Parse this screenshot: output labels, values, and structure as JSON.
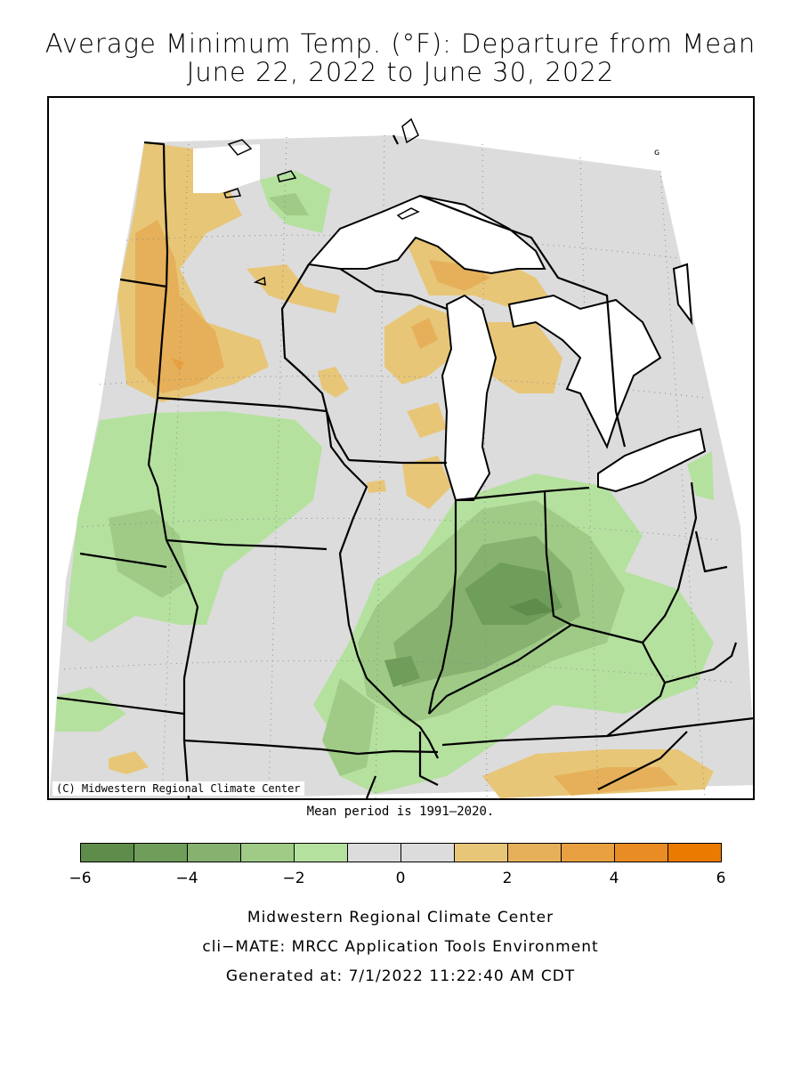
{
  "title_line1": "Average Minimum Temp. (°F): Departure from Mean",
  "title_line2": "June 22, 2022 to June 30, 2022",
  "copyright": "(C) Midwestern Regional Climate Center",
  "mean_note": "Mean period is 1991–2020.",
  "legend": {
    "bins": [
      {
        "from": -6,
        "to": -5,
        "color": "#5e8c4a"
      },
      {
        "from": -5,
        "to": -4,
        "color": "#6f9d5a"
      },
      {
        "from": -4,
        "to": -3,
        "color": "#86b16e"
      },
      {
        "from": -3,
        "to": -2,
        "color": "#9fcb87"
      },
      {
        "from": -2,
        "to": -1,
        "color": "#b5e19f"
      },
      {
        "from": -1,
        "to": 0,
        "color": "#dcdcdc"
      },
      {
        "from": 0,
        "to": 1,
        "color": "#dcdcdc"
      },
      {
        "from": 1,
        "to": 2,
        "color": "#e8c678"
      },
      {
        "from": 2,
        "to": 3,
        "color": "#e6b05a"
      },
      {
        "from": 3,
        "to": 4,
        "color": "#e8a040"
      },
      {
        "from": 4,
        "to": 5,
        "color": "#ea8c24"
      },
      {
        "from": 5,
        "to": 6,
        "color": "#ea7b00"
      }
    ],
    "tick_labels": [
      "−6",
      "−4",
      "−2",
      "0",
      "2",
      "4",
      "6"
    ]
  },
  "footer": {
    "line1": "Midwestern Regional Climate Center",
    "line2": "cli−MATE: MRCC Application Tools Environment",
    "line3": "Generated at: 7/1/2022 11:22:40 AM CDT"
  }
}
